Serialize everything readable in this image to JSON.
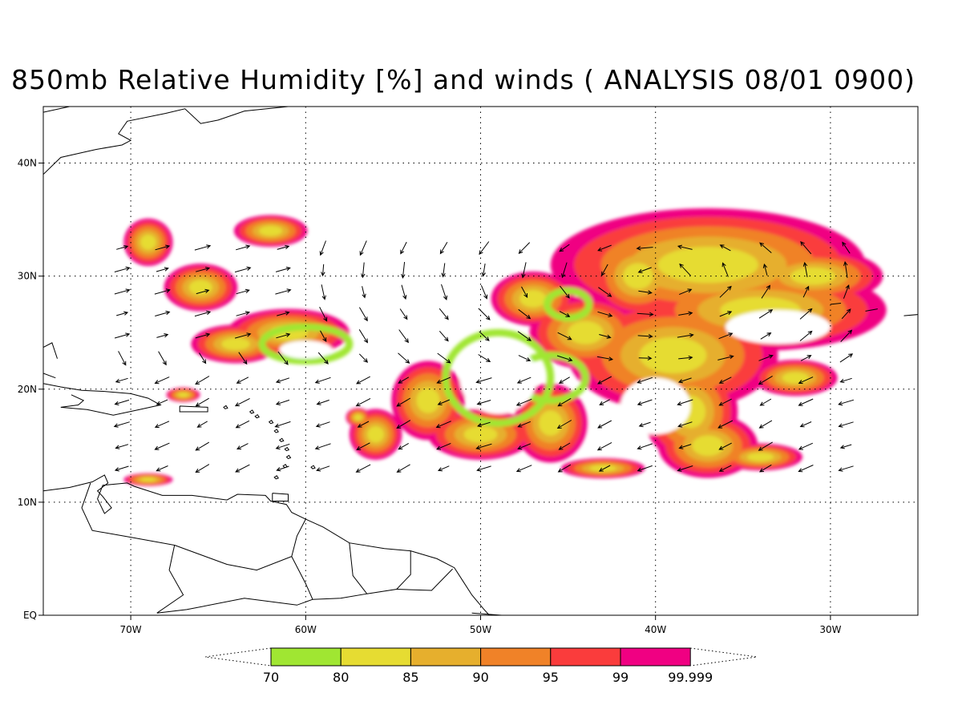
{
  "title": "850mb Relative Humidity [%] and winds ( ANALYSIS 08/01 0900)",
  "map": {
    "lon_range": [
      -75,
      -25
    ],
    "lat_range": [
      0,
      45
    ],
    "lon_ticks": [
      {
        "lon": -70,
        "label": "70W"
      },
      {
        "lon": -60,
        "label": "60W"
      },
      {
        "lon": -50,
        "label": "50W"
      },
      {
        "lon": -40,
        "label": "40W"
      },
      {
        "lon": -30,
        "label": "30W"
      }
    ],
    "lat_ticks": [
      {
        "lat": 0,
        "label": "EQ"
      },
      {
        "lat": 10,
        "label": "10N"
      },
      {
        "lat": 20,
        "label": "20N"
      },
      {
        "lat": 30,
        "label": "30N"
      },
      {
        "lat": 40,
        "label": "40N"
      }
    ],
    "grid": "dotted"
  },
  "colorbar": {
    "levels": [
      "70",
      "80",
      "85",
      "90",
      "95",
      "99",
      "99.999"
    ],
    "colors": [
      "#a0e632",
      "#e6dc32",
      "#e6af2d",
      "#f08228",
      "#fa3c3c",
      "#f00082"
    ]
  },
  "humidity_field": {
    "data_domain_lon": [
      -71,
      -29
    ],
    "data_domain_lat": [
      12,
      35.5
    ]
  }
}
